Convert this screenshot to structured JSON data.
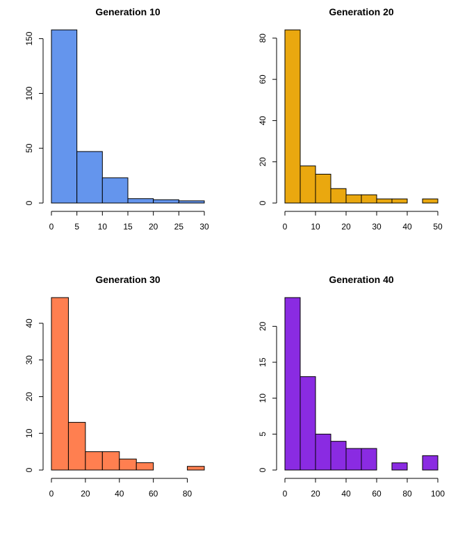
{
  "chart_data": [
    {
      "type": "bar",
      "title": "Generation 10",
      "xlabel": "",
      "ylabel": "",
      "bin_edges": [
        0,
        5,
        10,
        15,
        20,
        25,
        30
      ],
      "values": [
        158,
        47,
        23,
        4,
        3,
        2
      ],
      "color": "#6495ED",
      "xlim": [
        0,
        30
      ],
      "ylim": [
        0,
        158
      ],
      "xticks": [
        0,
        5,
        10,
        15,
        20,
        25,
        30
      ],
      "yticks": [
        0,
        50,
        100,
        150
      ],
      "xtick_labels": [
        "0",
        "5",
        "10",
        "15",
        "20",
        "25",
        "30"
      ],
      "ytick_labels": [
        "0",
        "50",
        "100",
        "150"
      ],
      "grid": false
    },
    {
      "type": "bar",
      "title": "Generation 20",
      "xlabel": "",
      "ylabel": "",
      "bin_edges": [
        0,
        5,
        10,
        15,
        20,
        25,
        30,
        35,
        40,
        45,
        50
      ],
      "values": [
        84,
        18,
        14,
        7,
        4,
        4,
        2,
        2,
        0,
        2
      ],
      "color": "#EAA80F",
      "xlim": [
        0,
        50
      ],
      "ylim": [
        0,
        84
      ],
      "xticks": [
        0,
        10,
        20,
        30,
        40,
        50
      ],
      "yticks": [
        0,
        20,
        40,
        60,
        80
      ],
      "xtick_labels": [
        "0",
        "10",
        "20",
        "30",
        "40",
        "50"
      ],
      "ytick_labels": [
        "0",
        "20",
        "40",
        "60",
        "80"
      ],
      "grid": false
    },
    {
      "type": "bar",
      "title": "Generation 30",
      "xlabel": "",
      "ylabel": "",
      "bin_edges": [
        0,
        10,
        20,
        30,
        40,
        50,
        60,
        70,
        80,
        90
      ],
      "values": [
        47,
        13,
        5,
        5,
        3,
        2,
        0,
        0,
        1
      ],
      "color": "#FF7F50",
      "xlim": [
        0,
        90
      ],
      "ylim": [
        0,
        47
      ],
      "xticks": [
        0,
        20,
        40,
        60,
        80
      ],
      "yticks": [
        0,
        10,
        20,
        30,
        40
      ],
      "xtick_labels": [
        "0",
        "20",
        "40",
        "60",
        "80"
      ],
      "ytick_labels": [
        "0",
        "10",
        "20",
        "30",
        "40"
      ],
      "grid": false
    },
    {
      "type": "bar",
      "title": "Generation 40",
      "xlabel": "",
      "ylabel": "",
      "bin_edges": [
        0,
        10,
        20,
        30,
        40,
        50,
        60,
        70,
        80,
        90,
        100
      ],
      "values": [
        24,
        13,
        5,
        4,
        3,
        3,
        0,
        1,
        0,
        2
      ],
      "color": "#8A2BE2",
      "xlim": [
        0,
        100
      ],
      "ylim": [
        0,
        24
      ],
      "xticks": [
        0,
        20,
        40,
        60,
        80,
        100
      ],
      "yticks": [
        0,
        5,
        10,
        15,
        20
      ],
      "xtick_labels": [
        "0",
        "20",
        "40",
        "60",
        "80",
        "100"
      ],
      "ytick_labels": [
        "0",
        "5",
        "10",
        "15",
        "20"
      ],
      "grid": false
    }
  ]
}
